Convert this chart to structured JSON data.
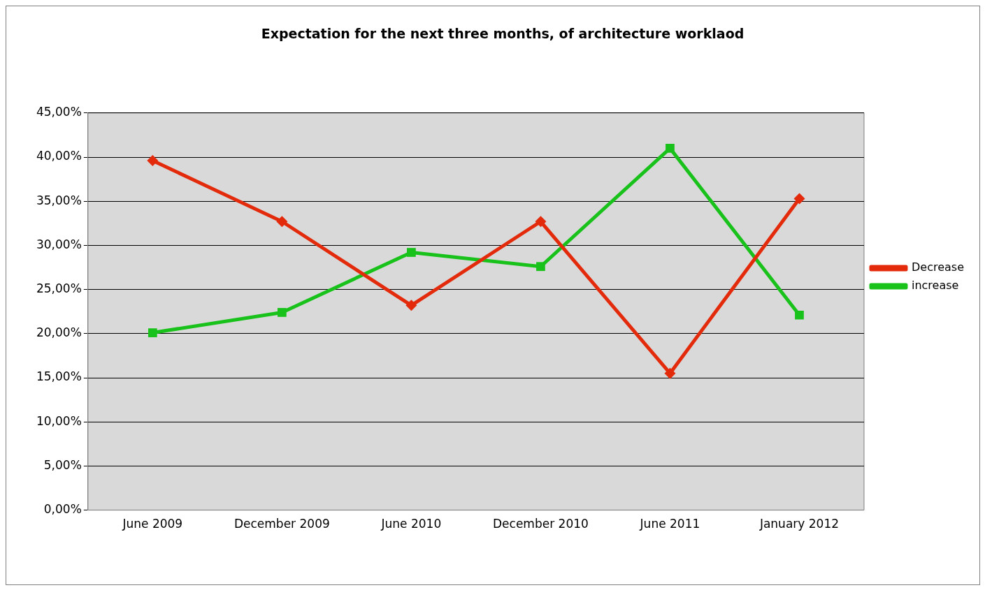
{
  "chart_data": {
    "type": "line",
    "title": "Expectation for the next three months, of architecture worklaod",
    "categories": [
      "June 2009",
      "December 2009",
      "June 2010",
      "December 2010",
      "June 2011",
      "January 2012"
    ],
    "series": [
      {
        "name": "Decrease",
        "color": "#e32b0c",
        "values": [
          39.6,
          32.7,
          23.2,
          32.7,
          15.5,
          35.3
        ],
        "marker": "diamond"
      },
      {
        "name": "increase",
        "color": "#18c21a",
        "values": [
          20.1,
          22.4,
          29.2,
          27.6,
          41.0,
          22.1
        ],
        "marker": "square"
      }
    ],
    "ylim": [
      0,
      45
    ],
    "yticks": [
      {
        "value": 0,
        "label": "0,00%"
      },
      {
        "value": 5,
        "label": "5,00%"
      },
      {
        "value": 10,
        "label": "10,00%"
      },
      {
        "value": 15,
        "label": "15,00%"
      },
      {
        "value": 20,
        "label": "20,00%"
      },
      {
        "value": 25,
        "label": "25,00%"
      },
      {
        "value": 30,
        "label": "30,00%"
      },
      {
        "value": 35,
        "label": "35,00%"
      },
      {
        "value": 40,
        "label": "40,00%"
      },
      {
        "value": 45,
        "label": "45,00%"
      }
    ],
    "grid": "y",
    "legend": "right",
    "line_style": "solid"
  }
}
